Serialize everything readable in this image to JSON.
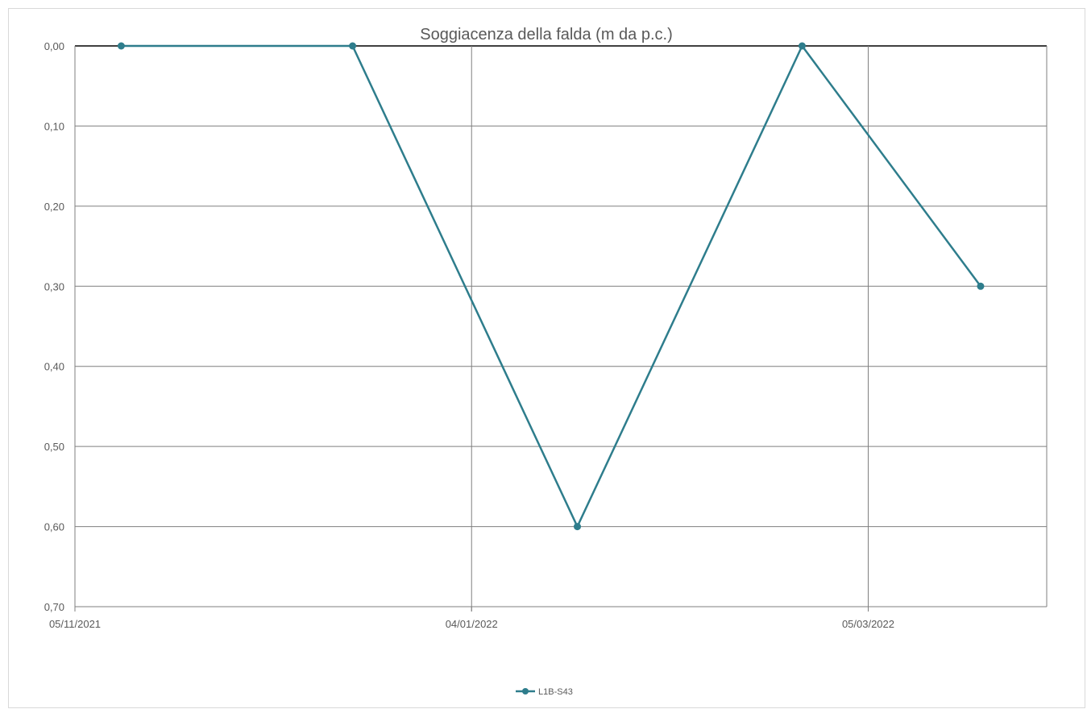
{
  "chart_data": {
    "type": "line",
    "title": "Soggiacenza della falda (m da p.c.)",
    "xlabel": "",
    "ylabel": "",
    "x_axis": {
      "kind": "date",
      "min": "2021-11-05",
      "max": "2022-04-01",
      "ticks": [
        {
          "date": "2021-11-05",
          "label": "05/11/2021"
        },
        {
          "date": "2022-01-04",
          "label": "04/01/2022"
        },
        {
          "date": "2022-03-05",
          "label": "05/03/2022"
        }
      ]
    },
    "y_axis": {
      "reversed": true,
      "min": 0,
      "max": 0.7,
      "ticks": [
        {
          "value": 0.0,
          "label": "0,00"
        },
        {
          "value": 0.1,
          "label": "0,10"
        },
        {
          "value": 0.2,
          "label": "0,20"
        },
        {
          "value": 0.3,
          "label": "0,30"
        },
        {
          "value": 0.4,
          "label": "0,40"
        },
        {
          "value": 0.5,
          "label": "0,50"
        },
        {
          "value": 0.6,
          "label": "0,60"
        },
        {
          "value": 0.7,
          "label": "0,70"
        }
      ]
    },
    "grid": {
      "horizontal": true,
      "vertical": true
    },
    "legend_position": "bottom",
    "series": [
      {
        "name": "L1B-S43",
        "color": "#2e7d8c",
        "points": [
          {
            "x": "2021-11-12",
            "y": 0.0
          },
          {
            "x": "2021-12-17",
            "y": 0.0
          },
          {
            "x": "2022-01-20",
            "y": 0.6
          },
          {
            "x": "2022-02-23",
            "y": 0.0
          },
          {
            "x": "2022-03-22",
            "y": 0.3
          }
        ]
      }
    ]
  }
}
